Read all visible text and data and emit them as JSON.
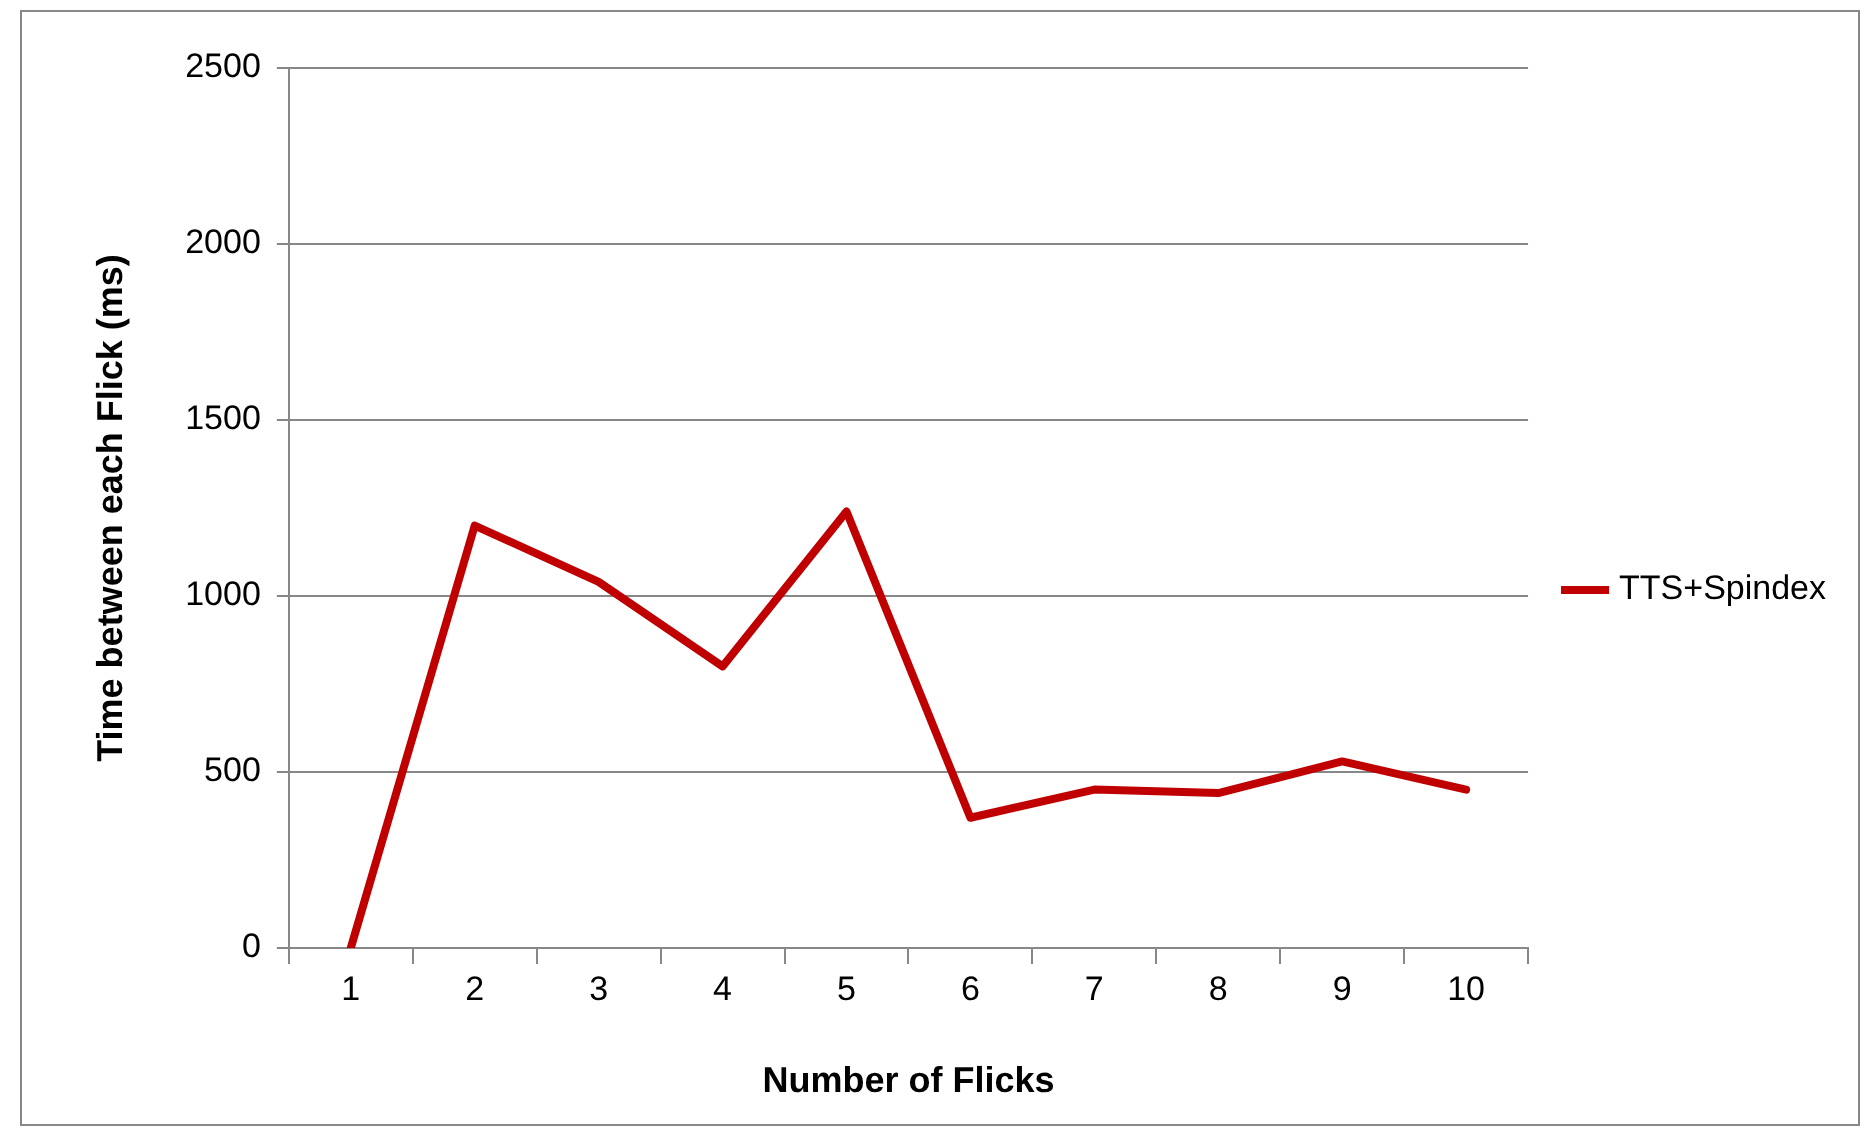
{
  "chart_data": {
    "type": "line",
    "xlabel": "Number of Flicks",
    "ylabel": "Time between each Flick (ms)",
    "categories": [
      "1",
      "2",
      "3",
      "4",
      "5",
      "6",
      "7",
      "8",
      "9",
      "10"
    ],
    "series": [
      {
        "name": "TTS+Spindex",
        "color": "#c00000",
        "values": [
          0,
          1200,
          1040,
          800,
          1240,
          370,
          450,
          440,
          530,
          450
        ]
      }
    ],
    "ylim": [
      0,
      2500
    ],
    "yticks": [
      0,
      500,
      1000,
      1500,
      2000,
      2500
    ],
    "grid": "y",
    "legend": "right",
    "marker": "none",
    "line_style": "solid"
  }
}
